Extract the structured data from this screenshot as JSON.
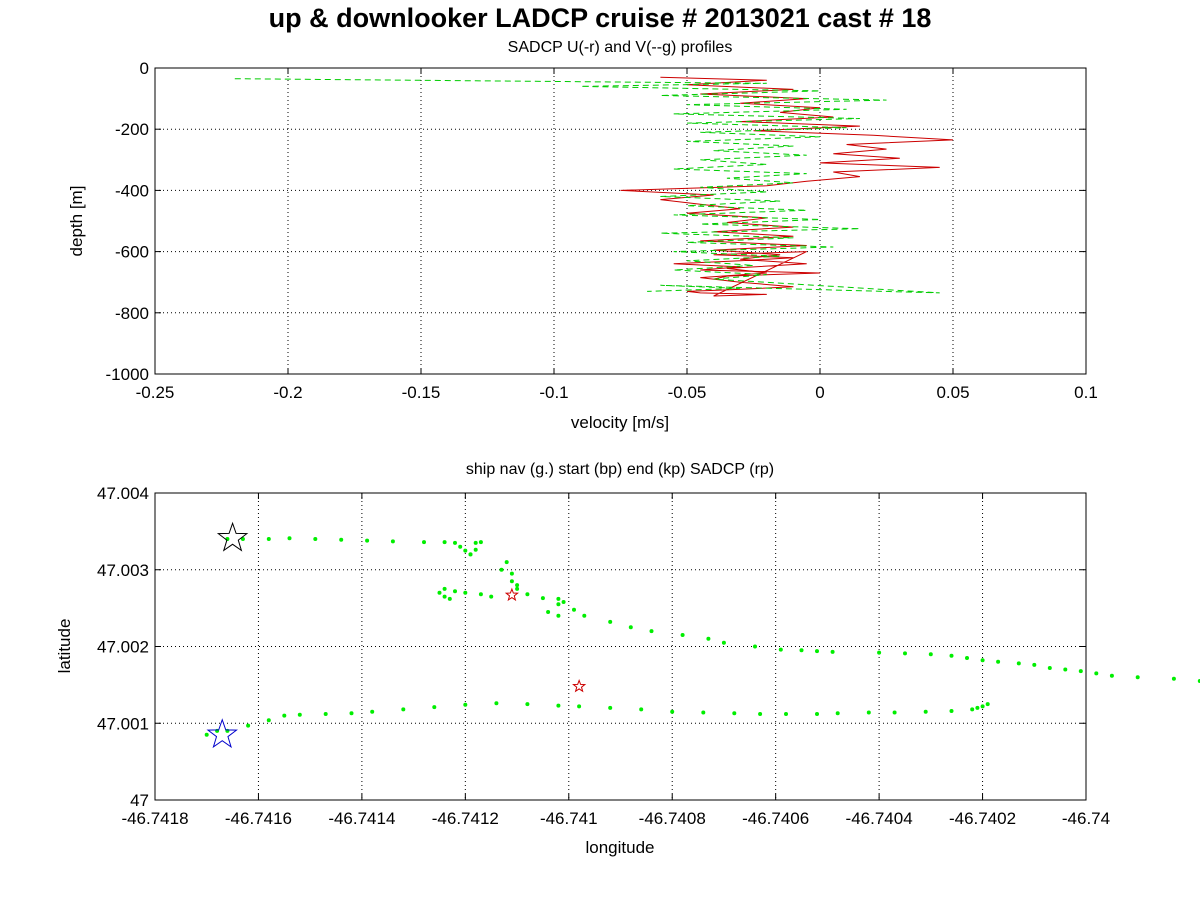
{
  "title": "up & downlooker LADCP cruise # 2013021 cast # 18",
  "chart_data": [
    {
      "type": "line",
      "title": "SADCP U(-r) and V(--g) profiles",
      "xlabel": "velocity [m/s]",
      "ylabel": "depth [m]",
      "xlim": [
        -0.25,
        0.1
      ],
      "ylim": [
        -1000,
        0
      ],
      "xticks": [
        "-0.25",
        "-0.2",
        "-0.15",
        "-0.1",
        "-0.05",
        "0",
        "0.05",
        "0.1"
      ],
      "yticks": [
        "0",
        "-200",
        "-400",
        "-600",
        "-800",
        "-1000"
      ],
      "grid": true,
      "series": [
        {
          "color": "#cc0000",
          "style": "solid",
          "x": [
            -0.06,
            -0.02,
            -0.05,
            -0.01,
            -0.045,
            -0.005,
            -0.03,
            0.0,
            -0.015,
            0.005,
            -0.03,
            0.015,
            -0.025,
            0.02,
            0.05,
            0.01,
            0.025,
            0.005,
            0.03,
            0.0,
            0.045,
            0.005,
            0.015,
            -0.005,
            -0.02,
            -0.075,
            -0.04,
            -0.06,
            -0.045,
            -0.03,
            -0.05,
            -0.02,
            -0.035,
            -0.01,
            -0.04,
            -0.01,
            -0.045,
            -0.005,
            -0.04,
            -0.015,
            -0.03,
            -0.005,
            -0.035,
            -0.02,
            -0.045,
            -0.03,
            -0.01,
            -0.035,
            -0.05,
            -0.045,
            -0.02,
            -0.04,
            -0.005,
            -0.04,
            -0.01,
            -0.03,
            -0.055,
            -0.03,
            -0.045,
            0.0,
            -0.035,
            -0.04
          ],
          "y": [
            -30,
            -40,
            -55,
            -70,
            -85,
            -100,
            -115,
            -130,
            -145,
            -160,
            -175,
            -190,
            -205,
            -220,
            -235,
            -250,
            -265,
            -280,
            -295,
            -310,
            -325,
            -340,
            -355,
            -370,
            -385,
            -400,
            -415,
            -430,
            -445,
            -460,
            -475,
            -490,
            -505,
            -520,
            -535,
            -550,
            -565,
            -580,
            -595,
            -610,
            -625,
            -640,
            -655,
            -670,
            -685,
            -700,
            -715,
            -725,
            -730,
            -735,
            -740,
            -745,
            -600,
            -610,
            -620,
            -630,
            -640,
            -650,
            -660,
            -670,
            -680,
            -690
          ]
        },
        {
          "color": "#00cc00",
          "style": "dashed",
          "x": [
            -0.22,
            -0.02,
            -0.09,
            0.0,
            -0.06,
            0.025,
            -0.05,
            0.01,
            -0.055,
            0.015,
            -0.05,
            0.01,
            -0.045,
            0.0,
            -0.05,
            -0.01,
            -0.04,
            -0.005,
            -0.045,
            -0.02,
            -0.055,
            -0.005,
            -0.035,
            -0.01,
            -0.045,
            -0.02,
            -0.06,
            -0.015,
            -0.05,
            -0.005,
            -0.055,
            0.0,
            -0.045,
            0.015,
            -0.06,
            -0.01,
            -0.05,
            0.005,
            -0.055,
            -0.015,
            -0.05,
            -0.025,
            -0.055,
            -0.02,
            -0.04,
            0.045,
            -0.06,
            -0.03,
            -0.065
          ],
          "y": [
            -35,
            -50,
            -60,
            -75,
            -90,
            -105,
            -120,
            -135,
            -150,
            -165,
            -180,
            -195,
            -210,
            -225,
            -240,
            -255,
            -270,
            -285,
            -300,
            -315,
            -330,
            -345,
            -360,
            -375,
            -390,
            -405,
            -420,
            -435,
            -450,
            -465,
            -480,
            -495,
            -510,
            -525,
            -540,
            -555,
            -570,
            -585,
            -600,
            -615,
            -630,
            -645,
            -660,
            -675,
            -690,
            -735,
            -710,
            -720,
            -730
          ]
        }
      ]
    },
    {
      "type": "scatter",
      "title": "ship nav (g.) start (bp) end (kp) SADCP (rp)",
      "xlabel": "longitude",
      "ylabel": "latitude",
      "xlim": [
        -46.7418,
        -46.74
      ],
      "ylim": [
        47.0,
        47.004
      ],
      "xticks": [
        "-46.7418",
        "-46.7416",
        "-46.7414",
        "-46.7412",
        "-46.741",
        "-46.7408",
        "-46.7406",
        "-46.7404",
        "-46.7402",
        "-46.74"
      ],
      "yticks": [
        "47.004",
        "47.003",
        "47.002",
        "47.001",
        "47"
      ],
      "grid": true,
      "nav_track": {
        "color": "#00ee00",
        "lon": [
          -46.74166,
          -46.74163,
          -46.74158,
          -46.74154,
          -46.74149,
          -46.74144,
          -46.74139,
          -46.74134,
          -46.74128,
          -46.74124,
          -46.74122,
          -46.74121,
          -46.7412,
          -46.74119,
          -46.74118,
          -46.74117,
          -46.74118,
          -46.74119,
          -46.74123,
          -46.74124,
          -46.74125,
          -46.74124,
          -46.74122,
          -46.7412,
          -46.74117,
          -46.74115,
          -46.74113,
          -46.74112,
          -46.74111,
          -46.74111,
          -46.7411,
          -46.7411,
          -46.74108,
          -46.74105,
          -46.74104,
          -46.74102,
          -46.74102,
          -46.74102,
          -46.74101,
          -46.74099,
          -46.74097,
          -46.74092,
          -46.74088,
          -46.74084,
          -46.74078,
          -46.74073,
          -46.7407,
          -46.74064,
          -46.74059,
          -46.74055,
          -46.74052,
          -46.74049,
          -46.7404,
          -46.74035,
          -46.7403,
          -46.74026,
          -46.74023,
          -46.7402,
          -46.74017,
          -46.74013,
          -46.7401,
          -46.74007,
          -46.74004,
          -46.74001,
          -46.73998,
          -46.73995,
          -46.7399,
          -46.73983,
          -46.73978,
          -46.73975,
          -46.73972,
          -46.7397,
          -46.73963,
          -46.73959,
          -46.73955,
          -46.73951,
          -46.73948,
          -46.73946,
          -46.74019,
          -46.7402,
          -46.74021,
          -46.74022,
          -46.74026,
          -46.74031,
          -46.74037,
          -46.74042,
          -46.74048,
          -46.74052,
          -46.74058,
          -46.74063,
          -46.74068,
          -46.74074,
          -46.7408,
          -46.74086,
          -46.74092,
          -46.74098,
          -46.74102,
          -46.74108,
          -46.74114,
          -46.7412,
          -46.74126,
          -46.74132,
          -46.74138,
          -46.74142,
          -46.74147,
          -46.74152,
          -46.74155,
          -46.74158,
          -46.74162,
          -46.74166,
          -46.74168,
          -46.7417
        ],
        "lat": [
          47.0034,
          47.0034,
          47.0034,
          47.00341,
          47.0034,
          47.00339,
          47.00338,
          47.00337,
          47.00336,
          47.00336,
          47.00335,
          47.0033,
          47.00325,
          47.0032,
          47.00335,
          47.00336,
          47.00326,
          47.0032,
          47.00262,
          47.00265,
          47.0027,
          47.00275,
          47.00272,
          47.0027,
          47.00268,
          47.00265,
          47.003,
          47.0031,
          47.00295,
          47.00285,
          47.0028,
          47.00275,
          47.00268,
          47.00263,
          47.00245,
          47.0024,
          47.00255,
          47.00262,
          47.00258,
          47.00248,
          47.0024,
          47.00232,
          47.00225,
          47.0022,
          47.00215,
          47.0021,
          47.00205,
          47.002,
          47.00196,
          47.00195,
          47.00194,
          47.00193,
          47.00192,
          47.00191,
          47.0019,
          47.00188,
          47.00185,
          47.00182,
          47.0018,
          47.00178,
          47.00176,
          47.00172,
          47.0017,
          47.00168,
          47.00165,
          47.00162,
          47.0016,
          47.00158,
          47.00155,
          47.00152,
          47.0015,
          47.00148,
          47.00147,
          47.00146,
          47.00145,
          47.0014,
          47.00135,
          47.0013,
          47.00125,
          47.00122,
          47.0012,
          47.00118,
          47.00116,
          47.00115,
          47.00114,
          47.00114,
          47.00113,
          47.00112,
          47.00112,
          47.00112,
          47.00113,
          47.00114,
          47.00115,
          47.00118,
          47.0012,
          47.00122,
          47.00123,
          47.00125,
          47.00126,
          47.00124,
          47.00121,
          47.00118,
          47.00115,
          47.00113,
          47.00112,
          47.00111,
          47.0011,
          47.00104,
          47.00097,
          47.0009,
          47.0009,
          47.00085
        ]
      },
      "start": {
        "lon": -46.74167,
        "lat": 47.00085,
        "color": "#0000cc"
      },
      "end": {
        "lon": -46.74165,
        "lat": 47.00341,
        "color": "#000000"
      },
      "sadcp_points": [
        {
          "lon": -46.74111,
          "lat": 47.00267,
          "color": "#cc0000"
        },
        {
          "lon": -46.74098,
          "lat": 47.00148,
          "color": "#cc0000"
        }
      ]
    }
  ]
}
